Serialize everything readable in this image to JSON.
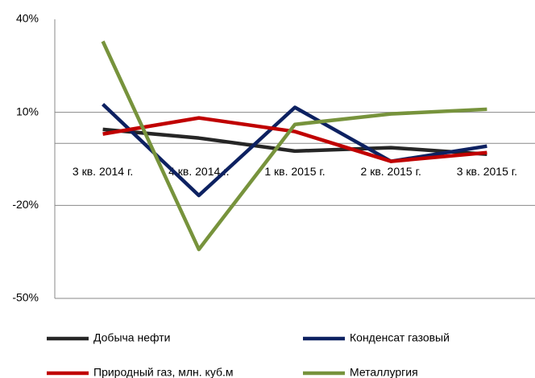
{
  "chart_data": {
    "type": "line",
    "categories": [
      "3 кв. 2014 г.",
      "4 кв. 2014 г.",
      "1 кв. 2015 г.",
      "2 кв. 2015 г.",
      "3 кв. 2015 г."
    ],
    "series": [
      {
        "name": "Добыча нефти",
        "color": "#262626",
        "values": [
          4.5,
          1.7,
          -2.5,
          -1.4,
          -3.5
        ]
      },
      {
        "name": "Конденсат газовый",
        "color": "#0d2161",
        "values": [
          12.6,
          -16.8,
          11.6,
          -5.8,
          -0.9
        ]
      },
      {
        "name": "Природный газ, млн. куб.м",
        "color": "#c00000",
        "values": [
          3,
          8.2,
          3.8,
          -5.8,
          -3
        ]
      },
      {
        "name": "Металлургия",
        "color": "#77933c",
        "values": [
          32.9,
          -34.2,
          6.1,
          9.5,
          11
        ]
      }
    ],
    "ylim": [
      -50,
      40
    ],
    "yticks": [
      {
        "value": 40,
        "label": "40%"
      },
      {
        "value": 10,
        "label": "10%"
      },
      {
        "value": -20,
        "label": "-20%"
      },
      {
        "value": -50,
        "label": "-50%"
      }
    ],
    "grid": true
  }
}
